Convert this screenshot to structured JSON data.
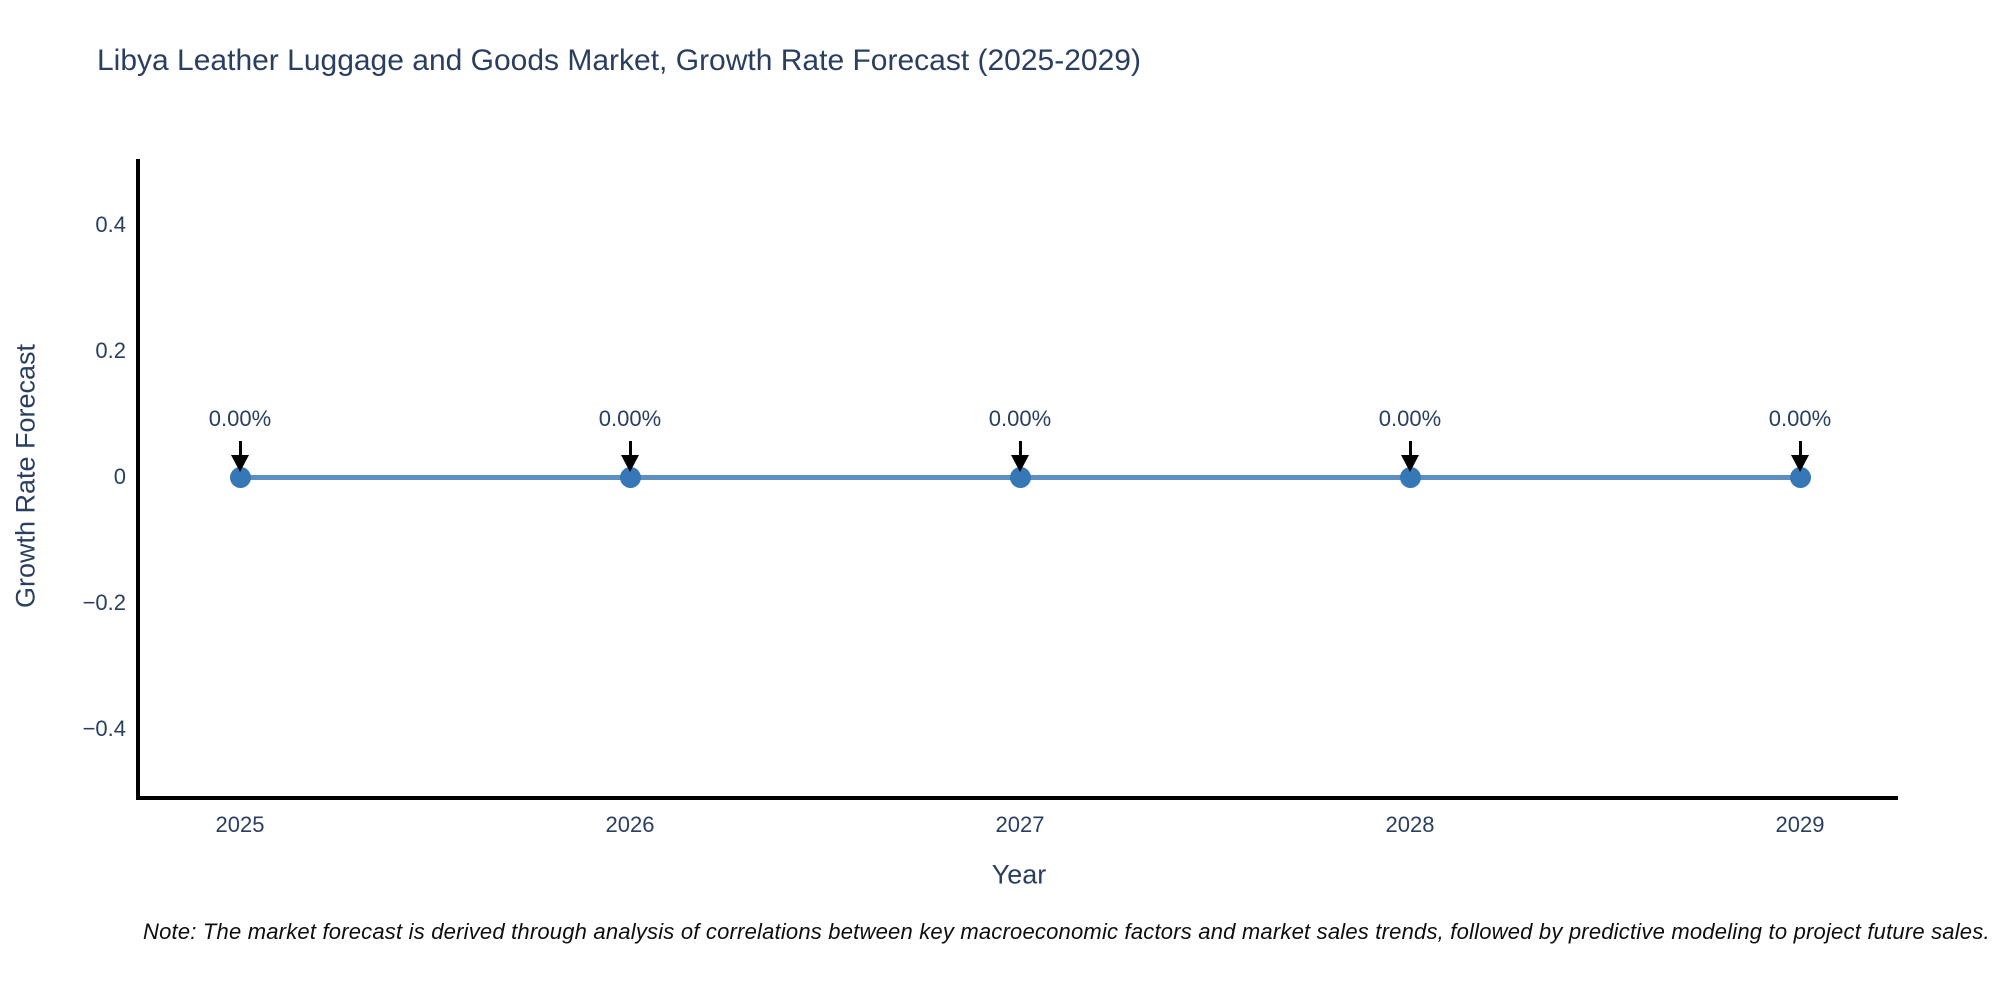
{
  "figure": {
    "title": "Libya Leather Luggage and Goods Market, Growth Rate Forecast (2025-2029)",
    "note": "Note: The market forecast is derived through analysis of correlations between key macroeconomic factors and market sales trends, followed by predictive modeling to project future sales."
  },
  "chart_data": {
    "type": "line",
    "title": "Libya Leather Luggage and Goods Market, Growth Rate Forecast (2025-2029)",
    "xlabel": "Year",
    "ylabel": "Growth Rate Forecast",
    "categories": [
      "2025",
      "2026",
      "2027",
      "2028",
      "2029"
    ],
    "series": [
      {
        "name": "Growth Rate Forecast",
        "values": [
          0,
          0,
          0,
          0,
          0
        ]
      }
    ],
    "point_labels": [
      "0.00%",
      "0.00%",
      "0.00%",
      "0.00%",
      "0.00%"
    ],
    "ytick_labels": [
      "0.4",
      "0.2",
      "0",
      "−0.2",
      "−0.4"
    ],
    "ytick_values": [
      0.4,
      0.2,
      0,
      -0.2,
      -0.4
    ],
    "ylim": [
      -0.5,
      0.5
    ],
    "grid": false,
    "legend_position": "none",
    "annotation_arrow": "down-arrow-to-point",
    "colors": {
      "line": "#5d8fc0",
      "marker": "#3578b5",
      "arrow": "#000000",
      "text": "#2a3f5f",
      "spine": "#000000",
      "background": "#ffffff"
    }
  }
}
